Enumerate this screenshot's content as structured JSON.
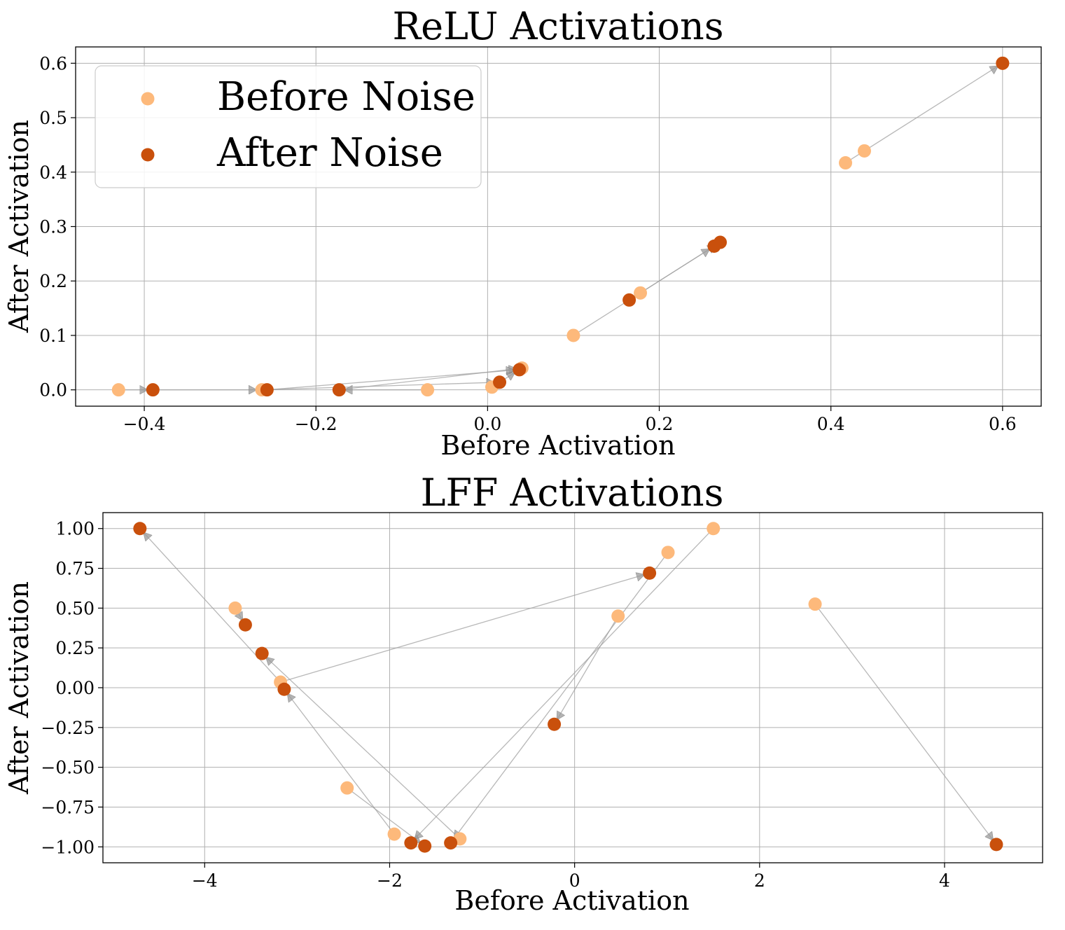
{
  "chart_data": [
    {
      "type": "scatter",
      "title": "ReLU Activations",
      "xlabel": "Before Activation",
      "ylabel": "After Activation",
      "xlim": [
        -0.48,
        0.645
      ],
      "ylim": [
        -0.03,
        0.63
      ],
      "xticks": [
        -0.4,
        -0.2,
        0.0,
        0.2,
        0.4,
        0.6
      ],
      "xtick_labels": [
        "−0.4",
        "−0.2",
        "0.0",
        "0.2",
        "0.4",
        "0.6"
      ],
      "yticks": [
        0.0,
        0.1,
        0.2,
        0.3,
        0.4,
        0.5,
        0.6
      ],
      "ytick_labels": [
        "0.0",
        "0.1",
        "0.2",
        "0.3",
        "0.4",
        "0.5",
        "0.6"
      ],
      "grid": true,
      "legend": {
        "position": "top-left",
        "entries": [
          "Before Noise",
          "After Noise"
        ]
      },
      "colors": {
        "before": "#fdb97b",
        "after": "#c9500c",
        "arrow": "#a0a0a0"
      },
      "series": [
        {
          "name": "Before Noise",
          "points": [
            [
              -0.43,
              0.0
            ],
            [
              -0.263,
              0.0
            ],
            [
              -0.07,
              0.0
            ],
            [
              0.005,
              0.005
            ],
            [
              0.04,
              0.04
            ],
            [
              0.1,
              0.1
            ],
            [
              0.178,
              0.178
            ],
            [
              0.417,
              0.417
            ],
            [
              0.439,
              0.439
            ],
            [
              0.6,
              0.6
            ]
          ]
        },
        {
          "name": "After Noise",
          "points": [
            [
              -0.39,
              0.0
            ],
            [
              -0.257,
              0.0
            ],
            [
              -0.173,
              0.0
            ],
            [
              0.014,
              0.014
            ],
            [
              0.037,
              0.037
            ],
            [
              0.165,
              0.165
            ],
            [
              0.264,
              0.264
            ],
            [
              0.271,
              0.271
            ],
            [
              0.6,
              0.6
            ]
          ]
        }
      ],
      "arrows": [
        [
          [
            -0.43,
            0.0
          ],
          [
            -0.39,
            0.0
          ]
        ],
        [
          [
            -0.07,
            0.0
          ],
          [
            -0.173,
            0.0
          ]
        ],
        [
          [
            -0.39,
            0.0
          ],
          [
            -0.263,
            0.0
          ]
        ],
        [
          [
            -0.263,
            0.0
          ],
          [
            0.014,
            0.014
          ]
        ],
        [
          [
            -0.173,
            0.0
          ],
          [
            0.04,
            0.04
          ]
        ],
        [
          [
            -0.257,
            0.0
          ],
          [
            0.037,
            0.037
          ]
        ],
        [
          [
            0.005,
            0.005
          ],
          [
            0.037,
            0.037
          ]
        ],
        [
          [
            0.1,
            0.1
          ],
          [
            0.178,
            0.178
          ]
        ],
        [
          [
            0.165,
            0.165
          ],
          [
            0.264,
            0.264
          ]
        ],
        [
          [
            0.178,
            0.178
          ],
          [
            0.271,
            0.271
          ]
        ],
        [
          [
            0.417,
            0.417
          ],
          [
            0.6,
            0.6
          ]
        ]
      ]
    },
    {
      "type": "scatter",
      "title": "LFF Activations",
      "xlabel": "Before Activation",
      "ylabel": "After Activation",
      "xlim": [
        -5.1,
        5.06
      ],
      "ylim": [
        -1.1,
        1.1
      ],
      "xticks": [
        -4,
        -2,
        0,
        2,
        4
      ],
      "xtick_labels": [
        "−4",
        "−2",
        "0",
        "2",
        "4"
      ],
      "yticks": [
        1.0,
        0.75,
        0.5,
        0.25,
        0.0,
        -0.25,
        -0.5,
        -0.75,
        -1.0
      ],
      "ytick_labels": [
        "1.00",
        "0.75",
        "0.50",
        "0.25",
        "0.00",
        "−0.25",
        "−0.50",
        "−0.75",
        "−1.00"
      ],
      "grid": true,
      "colors": {
        "before": "#fdb97b",
        "after": "#c9500c",
        "arrow": "#a0a0a0"
      },
      "series": [
        {
          "name": "Before Noise",
          "points": [
            [
              -3.67,
              0.5
            ],
            [
              -3.18,
              0.035
            ],
            [
              -2.46,
              -0.63
            ],
            [
              -1.95,
              -0.92
            ],
            [
              -1.24,
              -0.95
            ],
            [
              0.47,
              0.45
            ],
            [
              1.01,
              0.85
            ],
            [
              1.5,
              1.0
            ],
            [
              2.6,
              0.525
            ]
          ]
        },
        {
          "name": "After Noise",
          "points": [
            [
              -4.7,
              1.0
            ],
            [
              -3.56,
              0.395
            ],
            [
              -3.38,
              0.215
            ],
            [
              -3.14,
              -0.01
            ],
            [
              -1.77,
              -0.975
            ],
            [
              -1.62,
              -0.995
            ],
            [
              -1.34,
              -0.975
            ],
            [
              -0.22,
              -0.23
            ],
            [
              0.81,
              0.72
            ],
            [
              4.56,
              -0.985
            ]
          ]
        }
      ],
      "arrows": [
        [
          [
            -3.67,
            0.5
          ],
          [
            -3.56,
            0.395
          ]
        ],
        [
          [
            -1.24,
            -0.95
          ],
          [
            -3.38,
            0.215
          ]
        ],
        [
          [
            -1.95,
            -0.92
          ],
          [
            -3.14,
            -0.01
          ]
        ],
        [
          [
            -3.18,
            0.035
          ],
          [
            -4.7,
            1.0
          ]
        ],
        [
          [
            -3.18,
            0.035
          ],
          [
            0.81,
            0.72
          ]
        ],
        [
          [
            -2.46,
            -0.63
          ],
          [
            -1.62,
            -0.995
          ]
        ],
        [
          [
            1.5,
            1.0
          ],
          [
            -1.77,
            -0.975
          ]
        ],
        [
          [
            1.01,
            0.85
          ],
          [
            -1.34,
            -0.975
          ]
        ],
        [
          [
            0.47,
            0.45
          ],
          [
            -0.22,
            -0.23
          ]
        ],
        [
          [
            2.6,
            0.525
          ],
          [
            4.56,
            -0.985
          ]
        ]
      ]
    }
  ]
}
